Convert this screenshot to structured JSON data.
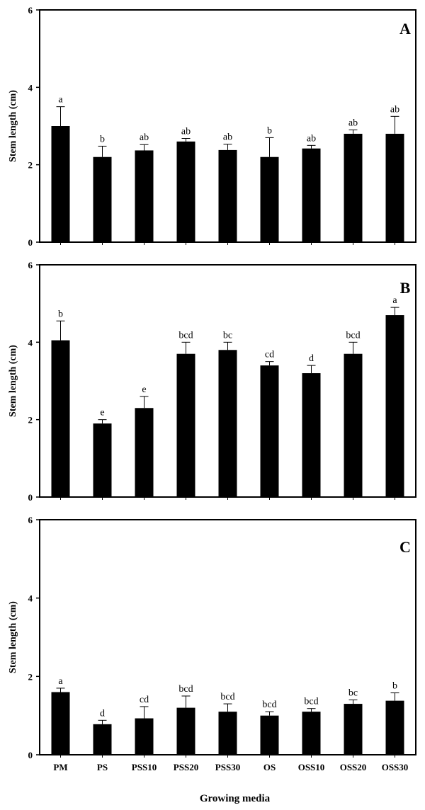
{
  "chart_data": [
    {
      "type": "bar",
      "panel": "A",
      "categories": [
        "PM",
        "PS",
        "PSS10",
        "PSS20",
        "PSS30",
        "OS",
        "OSS10",
        "OSS20",
        "OSS30"
      ],
      "values": [
        3.0,
        2.2,
        2.37,
        2.6,
        2.38,
        2.2,
        2.42,
        2.8,
        2.8
      ],
      "errors": [
        0.5,
        0.28,
        0.15,
        0.08,
        0.15,
        0.5,
        0.08,
        0.1,
        0.45
      ],
      "letters": [
        "a",
        "b",
        "ab",
        "ab",
        "ab",
        "b",
        "ab",
        "ab",
        "ab"
      ],
      "ylabel": "Stem length (cm)",
      "ylim": [
        0,
        6
      ],
      "yticks": [
        "0",
        "2",
        "4",
        "6"
      ]
    },
    {
      "type": "bar",
      "panel": "B",
      "categories": [
        "PM",
        "PS",
        "PSS10",
        "PSS20",
        "PSS30",
        "OS",
        "OSS10",
        "OSS20",
        "OSS30"
      ],
      "values": [
        4.05,
        1.9,
        2.3,
        3.7,
        3.8,
        3.4,
        3.2,
        3.7,
        4.7
      ],
      "errors": [
        0.5,
        0.1,
        0.3,
        0.3,
        0.2,
        0.1,
        0.2,
        0.3,
        0.2
      ],
      "letters": [
        "b",
        "e",
        "e",
        "bcd",
        "bc",
        "cd",
        "d",
        "bcd",
        "a"
      ],
      "ylabel": "Stem length (cm)",
      "ylim": [
        0,
        6
      ],
      "yticks": [
        "0",
        "2",
        "4",
        "6"
      ]
    },
    {
      "type": "bar",
      "panel": "C",
      "categories": [
        "PM",
        "PS",
        "PSS10",
        "PSS20",
        "PSS30",
        "OS",
        "OSS10",
        "OSS20",
        "OSS30"
      ],
      "values": [
        1.6,
        0.78,
        0.93,
        1.2,
        1.1,
        1.0,
        1.1,
        1.3,
        1.38
      ],
      "errors": [
        0.1,
        0.1,
        0.3,
        0.3,
        0.2,
        0.1,
        0.08,
        0.1,
        0.2
      ],
      "letters": [
        "a",
        "d",
        "cd",
        "bcd",
        "bcd",
        "bcd",
        "bcd",
        "bc",
        "b"
      ],
      "ylabel": "Stem length (cm)",
      "ylim": [
        0,
        6
      ],
      "yticks": [
        "0",
        "2",
        "4",
        "6"
      ],
      "xlabel": "Growing media",
      "show_categories": true
    }
  ]
}
